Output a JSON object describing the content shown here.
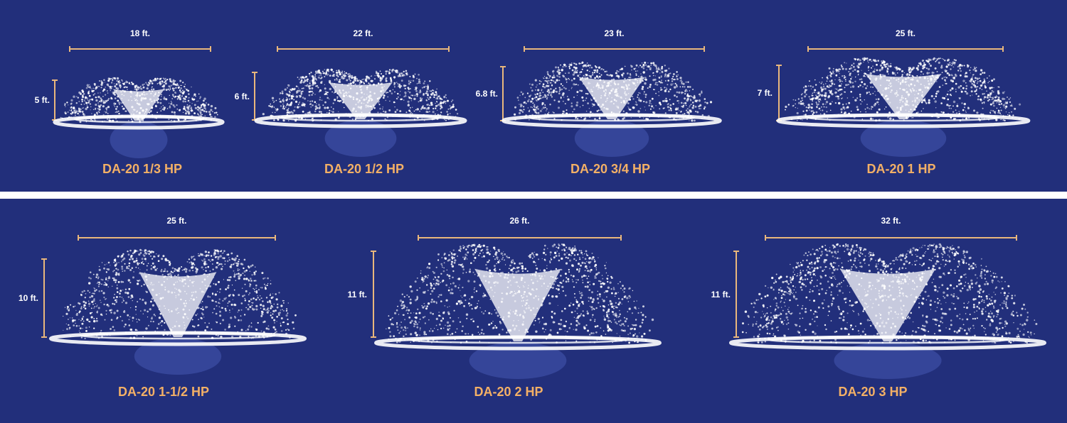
{
  "colors": {
    "background": "#222f7b",
    "divider": "#ffffff",
    "dimension_line": "#e9b77c",
    "dimension_text": "#ffffff",
    "model_text": "#f3b066",
    "spray": "#ffffff"
  },
  "rows": [
    {
      "units": [
        {
          "model": "DA-20 1/3 HP",
          "width": "18 ft.",
          "height": "5 ft."
        },
        {
          "model": "DA-20 1/2 HP",
          "width": "22 ft.",
          "height": "6 ft."
        },
        {
          "model": "DA-20 3/4 HP",
          "width": "23 ft.",
          "height": "6.8 ft."
        },
        {
          "model": "DA-20 1 HP",
          "width": "25 ft.",
          "height": "7 ft."
        }
      ]
    },
    {
      "units": [
        {
          "model": "DA-20 1-1/2 HP",
          "width": "25 ft.",
          "height": "10 ft."
        },
        {
          "model": "DA-20 2 HP",
          "width": "26 ft.",
          "height": "11 ft."
        },
        {
          "model": "DA-20 3 HP",
          "width": "32 ft.",
          "height": "11 ft."
        }
      ]
    }
  ]
}
